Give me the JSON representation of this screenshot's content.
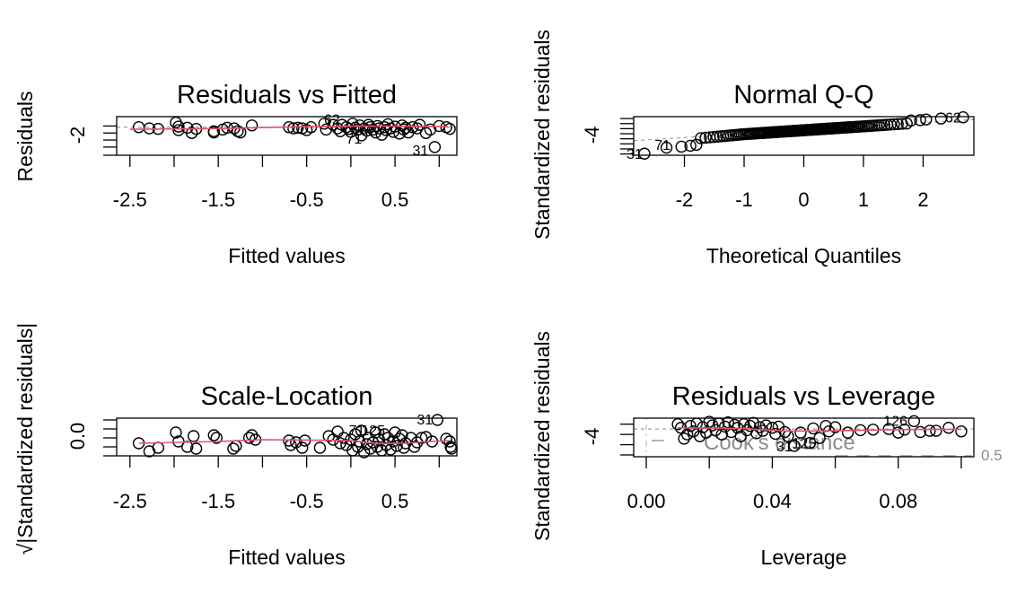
{
  "chart_data": [
    {
      "id": "resid-fitted",
      "type": "scatter",
      "title": "Residuals vs Fitted",
      "xlabel": "Fitted values",
      "ylabel": "Residuals",
      "xlim": [
        -2.65,
        1.2
      ],
      "ylim": [
        -2.5,
        0.8
      ],
      "x_ticks": [
        -2.5,
        -2.0,
        -1.5,
        -1.0,
        -0.5,
        0.0,
        0.5,
        1.0
      ],
      "x_tick_labels": [
        "-2.5",
        "",
        "-1.5",
        "",
        "-0.5",
        "",
        "0.5",
        ""
      ],
      "y_ticks": [
        -2.5,
        -1.8,
        -1.2,
        -0.6,
        0.0
      ],
      "y_tick_labels": [
        "",
        "-2",
        "",
        "",
        ""
      ],
      "reference_line": {
        "y": -0.1,
        "style": "dotted-gray"
      },
      "smooth_color": "#DF536B",
      "smooth": [
        [
          -2.5,
          -0.28
        ],
        [
          -1.5,
          -0.22
        ],
        [
          -0.5,
          -0.05
        ],
        [
          0.0,
          -0.02
        ],
        [
          0.5,
          -0.02
        ],
        [
          1.1,
          -0.05
        ]
      ],
      "labeled_points": [
        {
          "label": "62",
          "x": -0.1,
          "y": 0.6
        },
        {
          "label": "71",
          "x": 0.15,
          "y": -1.05
        },
        {
          "label": "31",
          "x": 0.9,
          "y": -2.05
        }
      ],
      "points": [
        [
          -2.4,
          -0.1
        ],
        [
          -2.28,
          -0.2
        ],
        [
          -2.18,
          -0.25
        ],
        [
          -1.98,
          0.3
        ],
        [
          -1.95,
          -0.05
        ],
        [
          -1.95,
          -0.35
        ],
        [
          -1.85,
          -0.15
        ],
        [
          -1.8,
          -0.6
        ],
        [
          -1.75,
          -0.25
        ],
        [
          -1.55,
          -0.45
        ],
        [
          -1.55,
          -0.55
        ],
        [
          -1.45,
          -0.3
        ],
        [
          -1.4,
          -0.15
        ],
        [
          -1.32,
          -0.2
        ],
        [
          -1.28,
          -0.45
        ],
        [
          -1.25,
          -0.55
        ],
        [
          -1.12,
          0.05
        ],
        [
          -0.7,
          -0.1
        ],
        [
          -0.65,
          -0.2
        ],
        [
          -0.6,
          -0.15
        ],
        [
          -0.55,
          -0.2
        ],
        [
          -0.5,
          -0.35
        ],
        [
          -0.45,
          -0.1
        ],
        [
          -0.3,
          0.2
        ],
        [
          -0.28,
          -0.3
        ],
        [
          -0.2,
          0.1
        ],
        [
          -0.15,
          -0.2
        ],
        [
          -0.12,
          -0.45
        ],
        [
          -0.1,
          0.1
        ],
        [
          -0.05,
          -0.1
        ],
        [
          -0.02,
          -0.25
        ],
        [
          0.0,
          -0.5
        ],
        [
          0.02,
          0.2
        ],
        [
          0.05,
          -0.15
        ],
        [
          0.08,
          -0.3
        ],
        [
          0.1,
          0.05
        ],
        [
          0.12,
          -0.8
        ],
        [
          0.15,
          -0.2
        ],
        [
          0.18,
          -0.4
        ],
        [
          0.2,
          0.1
        ],
        [
          0.22,
          -0.1
        ],
        [
          0.25,
          -0.3
        ],
        [
          0.28,
          -0.55
        ],
        [
          0.3,
          0.0
        ],
        [
          0.32,
          -0.2
        ],
        [
          0.35,
          -0.75
        ],
        [
          0.38,
          -0.1
        ],
        [
          0.4,
          -0.35
        ],
        [
          0.42,
          0.15
        ],
        [
          0.45,
          -0.2
        ],
        [
          0.48,
          -0.5
        ],
        [
          0.5,
          -0.05
        ],
        [
          0.55,
          -0.65
        ],
        [
          0.58,
          0.05
        ],
        [
          0.6,
          -0.3
        ],
        [
          0.62,
          -0.15
        ],
        [
          0.65,
          -0.55
        ],
        [
          0.7,
          -0.1
        ],
        [
          0.75,
          -0.2
        ],
        [
          0.78,
          0.1
        ],
        [
          0.85,
          -0.6
        ],
        [
          0.9,
          -0.3
        ],
        [
          0.95,
          -1.8
        ],
        [
          1.0,
          0.0
        ],
        [
          1.08,
          -0.1
        ],
        [
          1.12,
          -0.25
        ]
      ]
    },
    {
      "id": "normal-qq",
      "type": "scatter",
      "title": "Normal Q-Q",
      "xlabel": "Theoretical Quantiles",
      "ylabel": "Standardized residuals",
      "xlim": [
        -2.85,
        2.85
      ],
      "ylim": [
        -4.5,
        1.6
      ],
      "x_ticks": [
        -2,
        -1,
        0,
        1,
        2
      ],
      "x_tick_labels": [
        "-2",
        "-1",
        "0",
        "1",
        "2"
      ],
      "y_ticks": [
        -4.3,
        -3.5,
        -2.7,
        -1.9,
        -1.1,
        -0.3,
        0.5,
        1.3
      ],
      "y_tick_labels": [
        "",
        "-4",
        "",
        "",
        "",
        "",
        "",
        ""
      ],
      "reference_line": {
        "from": [
          -2.85,
          -2.2
        ],
        "to": [
          2.85,
          1.15
        ],
        "style": "dashed-gray"
      },
      "labeled_points": [
        {
          "label": "31",
          "x": -2.67,
          "y": -4.25
        },
        {
          "label": "71",
          "x": -2.2,
          "y": -2.8
        },
        {
          "label": "62",
          "x": 2.67,
          "y": 1.5
        }
      ],
      "n_points": 130,
      "tail_points": [
        [
          -2.67,
          -4.25
        ],
        [
          -2.3,
          -3.3
        ],
        [
          -2.05,
          -3.15
        ],
        [
          -1.9,
          -3.0
        ],
        [
          -1.8,
          -2.85
        ],
        [
          1.8,
          1.0
        ],
        [
          1.95,
          1.05
        ],
        [
          2.05,
          1.15
        ],
        [
          2.3,
          1.3
        ],
        [
          2.67,
          1.5
        ]
      ]
    },
    {
      "id": "scale-location",
      "type": "scatter",
      "title": "Scale-Location",
      "xlabel": "Fitted values",
      "ylabel": "√|Standardized residuals|",
      "xlim": [
        -2.65,
        1.2
      ],
      "ylim": [
        0.0,
        2.1
      ],
      "x_ticks": [
        -2.5,
        -2.0,
        -1.5,
        -1.0,
        -0.5,
        0.0,
        0.5,
        1.0
      ],
      "x_tick_labels": [
        "-2.5",
        "",
        "-1.5",
        "",
        "-0.5",
        "",
        "0.5",
        ""
      ],
      "y_ticks": [
        0.0,
        0.5,
        1.0,
        1.5,
        2.0
      ],
      "y_tick_labels": [
        "0.0",
        "",
        "",
        "",
        ""
      ],
      "smooth_color": "#DF536B",
      "smooth": [
        [
          -2.4,
          0.7
        ],
        [
          -1.5,
          0.8
        ],
        [
          -1.0,
          0.9
        ],
        [
          -0.5,
          0.88
        ],
        [
          0.0,
          0.85
        ],
        [
          0.3,
          0.68
        ],
        [
          0.6,
          0.7
        ],
        [
          0.9,
          0.8
        ],
        [
          1.12,
          0.85
        ]
      ],
      "labeled_points": [
        {
          "label": "71",
          "x": 0.18,
          "y": 1.45
        },
        {
          "label": "125",
          "x": 0.32,
          "y": 1.45
        },
        {
          "label": "31",
          "x": 0.95,
          "y": 2.05
        }
      ],
      "points": [
        [
          -2.4,
          0.7
        ],
        [
          -2.28,
          0.25
        ],
        [
          -2.18,
          0.45
        ],
        [
          -1.98,
          1.3
        ],
        [
          -1.95,
          0.8
        ],
        [
          -1.85,
          0.5
        ],
        [
          -1.78,
          1.1
        ],
        [
          -1.75,
          0.4
        ],
        [
          -1.55,
          1.15
        ],
        [
          -1.52,
          1.0
        ],
        [
          -1.33,
          0.4
        ],
        [
          -1.3,
          0.55
        ],
        [
          -1.15,
          1.0
        ],
        [
          -1.12,
          1.15
        ],
        [
          -1.08,
          0.9
        ],
        [
          -0.7,
          0.85
        ],
        [
          -0.68,
          0.6
        ],
        [
          -0.62,
          0.75
        ],
        [
          -0.55,
          0.45
        ],
        [
          -0.52,
          0.85
        ],
        [
          -0.35,
          0.45
        ],
        [
          -0.25,
          1.1
        ],
        [
          -0.2,
          0.9
        ],
        [
          -0.15,
          1.35
        ],
        [
          -0.12,
          0.7
        ],
        [
          -0.08,
          1.0
        ],
        [
          -0.05,
          0.6
        ],
        [
          0.0,
          0.9
        ],
        [
          0.02,
          0.3
        ],
        [
          0.05,
          1.2
        ],
        [
          0.08,
          0.5
        ],
        [
          0.1,
          0.8
        ],
        [
          0.12,
          1.4
        ],
        [
          0.15,
          0.2
        ],
        [
          0.18,
          0.65
        ],
        [
          0.2,
          1.0
        ],
        [
          0.22,
          0.4
        ],
        [
          0.25,
          0.75
        ],
        [
          0.28,
          1.3
        ],
        [
          0.3,
          0.5
        ],
        [
          0.32,
          0.9
        ],
        [
          0.35,
          0.3
        ],
        [
          0.38,
          1.2
        ],
        [
          0.4,
          0.6
        ],
        [
          0.42,
          1.0
        ],
        [
          0.45,
          0.35
        ],
        [
          0.48,
          0.8
        ],
        [
          0.5,
          1.3
        ],
        [
          0.52,
          0.55
        ],
        [
          0.55,
          0.95
        ],
        [
          0.58,
          1.15
        ],
        [
          0.6,
          0.45
        ],
        [
          0.62,
          0.7
        ],
        [
          0.68,
          1.0
        ],
        [
          0.72,
          0.5
        ],
        [
          0.75,
          0.75
        ],
        [
          0.8,
          1.0
        ],
        [
          0.85,
          1.05
        ],
        [
          0.92,
          0.8
        ],
        [
          0.98,
          2.0
        ],
        [
          1.08,
          0.95
        ],
        [
          1.12,
          0.8
        ],
        [
          1.13,
          0.5
        ],
        [
          1.14,
          0.4
        ]
      ]
    },
    {
      "id": "resid-leverage",
      "type": "scatter",
      "title": "Residuals vs Leverage",
      "xlabel": "Leverage",
      "ylabel": "Standardized residuals",
      "xlim": [
        -0.004,
        0.104
      ],
      "ylim": [
        -4.6,
        1.8
      ],
      "x_ticks": [
        0.0,
        0.02,
        0.04,
        0.06,
        0.08,
        0.1
      ],
      "x_tick_labels": [
        "0.00",
        "",
        "0.04",
        "",
        "0.08",
        ""
      ],
      "y_ticks": [
        -4.3,
        -2.6,
        -0.9,
        0.8
      ],
      "y_tick_labels": [
        "",
        "-4",
        "",
        ""
      ],
      "reference_lines": [
        {
          "y": 0,
          "style": "dashed-gray"
        },
        {
          "x": 0,
          "style": "dotdash-gray"
        }
      ],
      "smooth_color": "#DF536B",
      "smooth": [
        [
          0.01,
          0.2
        ],
        [
          0.03,
          0.1
        ],
        [
          0.045,
          -0.35
        ],
        [
          0.06,
          -0.3
        ],
        [
          0.08,
          -0.1
        ],
        [
          0.1,
          -0.05
        ]
      ],
      "cooks_distance": {
        "legend_label": "Cook's distance",
        "contour_labels": [
          "0.5"
        ]
      },
      "labeled_points": [
        {
          "label": "126",
          "x": 0.081,
          "y": 1.4
        },
        {
          "label": "31",
          "x": 0.047,
          "y": -2.8
        },
        {
          "label": "125",
          "x": 0.052,
          "y": -2.3
        }
      ],
      "points": [
        [
          0.01,
          0.8
        ],
        [
          0.011,
          0.2
        ],
        [
          0.012,
          -1.6
        ],
        [
          0.013,
          -0.9
        ],
        [
          0.014,
          0.5
        ],
        [
          0.015,
          -0.4
        ],
        [
          0.016,
          0.9
        ],
        [
          0.017,
          -1.2
        ],
        [
          0.018,
          0.3
        ],
        [
          0.019,
          -0.6
        ],
        [
          0.02,
          1.2
        ],
        [
          0.021,
          0.6
        ],
        [
          0.022,
          -0.2
        ],
        [
          0.023,
          0.9
        ],
        [
          0.024,
          -0.9
        ],
        [
          0.025,
          0.4
        ],
        [
          0.026,
          1.1
        ],
        [
          0.027,
          -0.5
        ],
        [
          0.028,
          0.7
        ],
        [
          0.029,
          0.2
        ],
        [
          0.03,
          -1.2
        ],
        [
          0.031,
          0.8
        ],
        [
          0.032,
          -0.2
        ],
        [
          0.033,
          0.5
        ],
        [
          0.034,
          1.0
        ],
        [
          0.035,
          -0.7
        ],
        [
          0.036,
          0.3
        ],
        [
          0.037,
          -0.3
        ],
        [
          0.038,
          0.6
        ],
        [
          0.04,
          0.2
        ],
        [
          0.041,
          -0.8
        ],
        [
          0.042,
          0.4
        ],
        [
          0.044,
          -0.5
        ],
        [
          0.045,
          -1.2
        ],
        [
          0.047,
          -2.8
        ],
        [
          0.049,
          -0.6
        ],
        [
          0.052,
          -2.3
        ],
        [
          0.053,
          0.1
        ],
        [
          0.055,
          -1.5
        ],
        [
          0.057,
          0.5
        ],
        [
          0.058,
          -0.4
        ],
        [
          0.06,
          0.3
        ],
        [
          0.064,
          -0.6
        ],
        [
          0.068,
          -0.2
        ],
        [
          0.072,
          -0.1
        ],
        [
          0.077,
          0.0
        ],
        [
          0.08,
          -0.6
        ],
        [
          0.082,
          -0.1
        ],
        [
          0.085,
          1.3
        ],
        [
          0.087,
          -0.5
        ],
        [
          0.09,
          -0.3
        ],
        [
          0.092,
          -0.3
        ],
        [
          0.096,
          0.2
        ],
        [
          0.1,
          -0.4
        ]
      ]
    }
  ]
}
